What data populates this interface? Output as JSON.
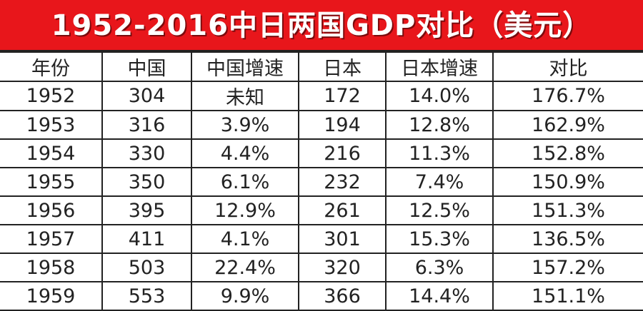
{
  "header": {
    "title": "1952-2016中日两国GDP对比（美元）"
  },
  "table": {
    "columns": [
      "年份",
      "中国",
      "中国增速",
      "日本",
      "日本增速",
      "对比"
    ],
    "rows": [
      [
        "1952",
        "304",
        "未知",
        "172",
        "14.0%",
        "176.7%"
      ],
      [
        "1953",
        "316",
        "3.9%",
        "194",
        "12.8%",
        "162.9%"
      ],
      [
        "1954",
        "330",
        "4.4%",
        "216",
        "11.3%",
        "152.8%"
      ],
      [
        "1955",
        "350",
        "6.1%",
        "232",
        "7.4%",
        "150.9%"
      ],
      [
        "1956",
        "395",
        "12.9%",
        "261",
        "12.5%",
        "151.3%"
      ],
      [
        "1957",
        "411",
        "4.1%",
        "301",
        "15.3%",
        "136.5%"
      ],
      [
        "1958",
        "503",
        "22.4%",
        "320",
        "6.3%",
        "157.2%"
      ],
      [
        "1959",
        "553",
        "9.9%",
        "366",
        "14.4%",
        "151.1%"
      ]
    ]
  }
}
